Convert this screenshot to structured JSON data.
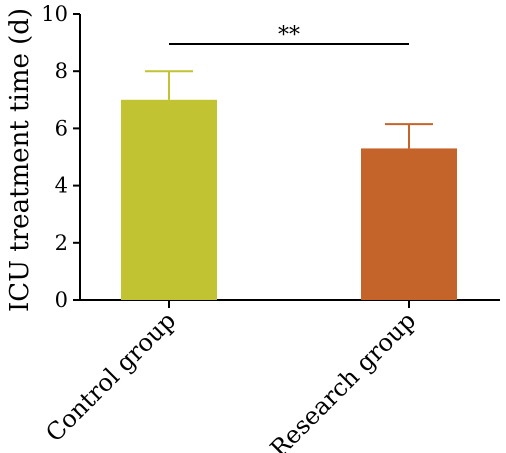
{
  "chart_data": {
    "type": "bar",
    "categories": [
      "Control group",
      "Research group"
    ],
    "values": [
      7.0,
      5.3
    ],
    "error_upper": [
      8.0,
      6.15
    ],
    "ylabel": "ICU treatment time (d)",
    "ylim": [
      0,
      10
    ],
    "yticks": [
      "0",
      "2",
      "4",
      "6",
      "8",
      "10"
    ],
    "significance": {
      "from": 0,
      "to": 1,
      "label": "**"
    },
    "colors": [
      "#c2c332",
      "#c4642a"
    ],
    "grid": false,
    "legend": "none"
  }
}
